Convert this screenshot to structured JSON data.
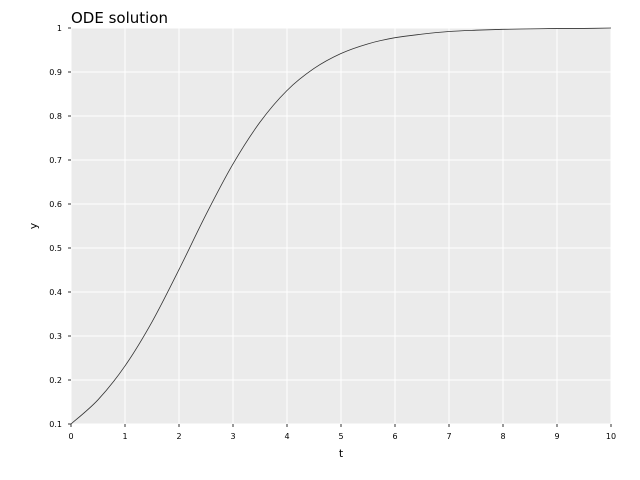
{
  "chart_data": {
    "type": "line",
    "title": "ODE solution",
    "xlabel": "t",
    "ylabel": "y",
    "xlim": [
      0,
      10
    ],
    "ylim": [
      0.1,
      1.0
    ],
    "grid": true,
    "x_ticks": [
      "0",
      "1",
      "2",
      "3",
      "4",
      "5",
      "6",
      "7",
      "8",
      "9",
      "10"
    ],
    "y_ticks": [
      "0.1",
      "0.2",
      "0.3",
      "0.4",
      "0.5",
      "0.6",
      "0.7",
      "0.8",
      "0.9",
      "1"
    ],
    "series": [
      {
        "x": [
          0,
          0.5,
          1,
          1.5,
          2,
          2.5,
          3,
          3.5,
          4,
          4.5,
          5,
          5.5,
          6,
          6.5,
          7,
          7.5,
          8,
          8.5,
          9,
          9.5,
          10
        ],
        "y": [
          0.1,
          0.155,
          0.232,
          0.332,
          0.451,
          0.576,
          0.691,
          0.786,
          0.858,
          0.908,
          0.942,
          0.964,
          0.978,
          0.986,
          0.992,
          0.995,
          0.997,
          0.998,
          0.999,
          0.999,
          1.0
        ]
      }
    ]
  },
  "colors": {
    "panel_background": "#ebebeb",
    "grid": "#ffffff",
    "line": "#333333"
  }
}
